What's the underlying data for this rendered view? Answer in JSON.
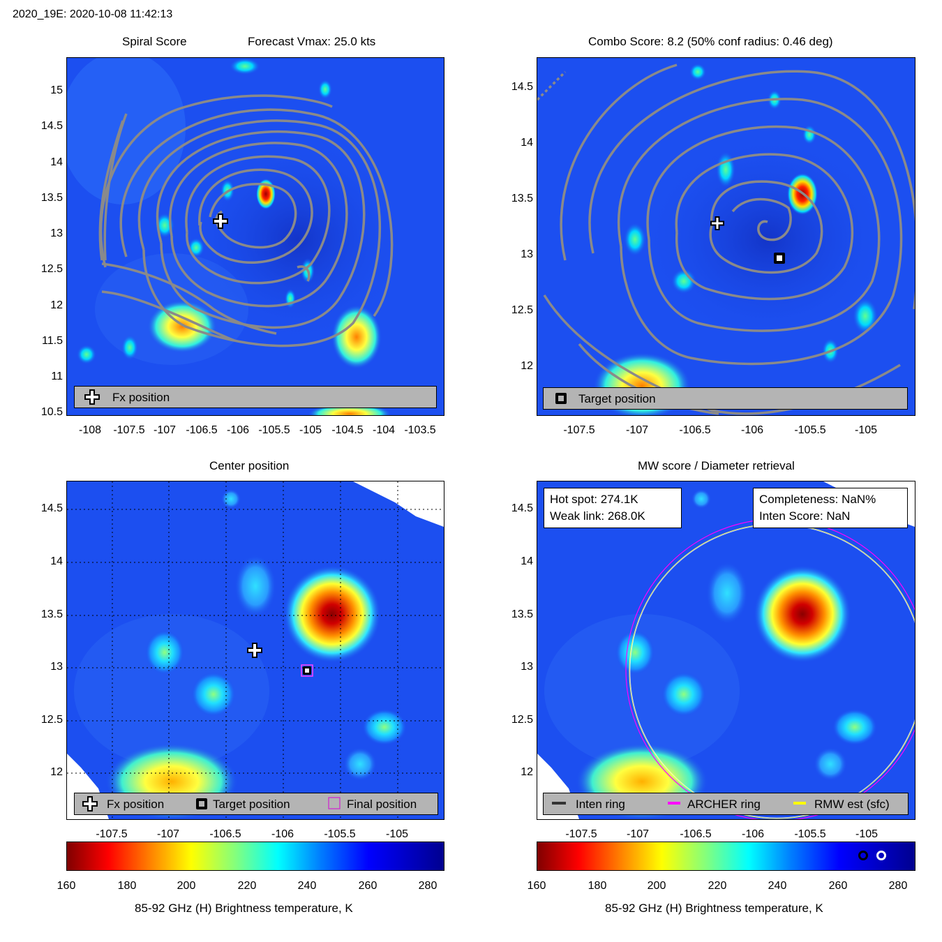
{
  "header": {
    "title": "2020_19E: 2020-10-08 11:42:13"
  },
  "panels": {
    "spiral": {
      "title_left": "Spiral Score",
      "title_right": "Forecast Vmax: 25.0 kts",
      "legend": {
        "fx_label": "Fx position"
      }
    },
    "combo": {
      "title": "Combo Score: 8.2  (50% conf radius: 0.46 deg)",
      "legend": {
        "target_label": "Target position"
      }
    },
    "center": {
      "title": "Center position",
      "legend": {
        "fx_label": "Fx position",
        "target_label": "Target position",
        "final_label": "Final position"
      }
    },
    "mw": {
      "title": "MW score / Diameter retrieval",
      "hot_spot": "Hot spot: 274.1K",
      "weak_link": "Weak link: 268.0K",
      "completeness": "Completeness: NaN%",
      "inten_score": "Inten Score: NaN",
      "legend": {
        "inten_label": "Inten ring",
        "archer_label": "ARCHER ring",
        "rmw_label": "RMW est (sfc)"
      }
    }
  },
  "colorbar": {
    "label": "85-92 GHz (H) Brightness temperature, K",
    "ticks": [
      "160",
      "180",
      "200",
      "220",
      "240",
      "260",
      "280"
    ]
  },
  "chart_data": [
    {
      "type": "heatmap",
      "name": "Spiral Score",
      "xlabel": "",
      "ylabel": "",
      "xlim": [
        -108.35,
        -103.2
      ],
      "ylim": [
        10.45,
        15.45
      ],
      "xticks": [
        "-108",
        "-107.5",
        "-107",
        "-106.5",
        "-106",
        "-105.5",
        "-105",
        "-104.5",
        "-104",
        "-103.5"
      ],
      "yticks": [
        "15",
        "14.5",
        "14",
        "13.5",
        "13",
        "12.5",
        "12",
        "11.5",
        "11",
        "10.5"
      ],
      "fx_position": {
        "lon": -106.2,
        "lat": 13.15
      },
      "cold_spots": [
        {
          "lon": -105.7,
          "lat": 13.45,
          "tb": 170
        },
        {
          "lon": -106.75,
          "lat": 11.75,
          "tb": 195
        },
        {
          "lon": -104.35,
          "lat": 11.55,
          "tb": 205
        }
      ]
    },
    {
      "type": "heatmap",
      "name": "Combo Score",
      "xlim": [
        -107.9,
        -104.6
      ],
      "ylim": [
        11.6,
        14.8
      ],
      "xticks": [
        "-107.5",
        "-107",
        "-106.5",
        "-106",
        "-105.5",
        "-105"
      ],
      "yticks": [
        "14.5",
        "14",
        "13.5",
        "13",
        "12.5",
        "12"
      ],
      "combo_score": 8.2,
      "conf_radius_deg": 0.46,
      "fx_position": {
        "lon": -106.35,
        "lat": 13.25
      },
      "target_position": {
        "lon": -105.8,
        "lat": 12.97
      }
    },
    {
      "type": "heatmap",
      "name": "Center position",
      "xlim": [
        -107.9,
        -104.6
      ],
      "ylim": [
        11.55,
        14.75
      ],
      "xticks": [
        "-107.5",
        "-107",
        "-106.5",
        "-106",
        "-105.5",
        "-105"
      ],
      "yticks": [
        "14.5",
        "14",
        "13.5",
        "13",
        "12.5",
        "12"
      ],
      "fx_position": {
        "lon": -106.25,
        "lat": 13.15
      },
      "target_position": {
        "lon": -105.8,
        "lat": 12.97
      },
      "final_position": {
        "lon": -105.8,
        "lat": 12.97
      }
    },
    {
      "type": "heatmap",
      "name": "MW score / Diameter retrieval",
      "xlim": [
        -107.9,
        -104.6
      ],
      "ylim": [
        11.55,
        14.75
      ],
      "xticks": [
        "-107.5",
        "-107",
        "-106.5",
        "-106",
        "-105.5",
        "-105"
      ],
      "yticks": [
        "14.5",
        "14",
        "13.5",
        "13",
        "12.5",
        "12"
      ],
      "hot_spot_K": 274.1,
      "weak_link_K": 268.0,
      "archer_ring_center": {
        "lon": -105.8,
        "lat": 12.97
      },
      "archer_ring_radius_deg": 1.3,
      "colorbar_markers_K": [
        268.0,
        274.1
      ]
    }
  ],
  "colors": {
    "ring_archer": "#ff00ff",
    "ring_rmw": "#ffff00",
    "contour": "#8a8a8a",
    "background_field": "#1c4ff0"
  }
}
